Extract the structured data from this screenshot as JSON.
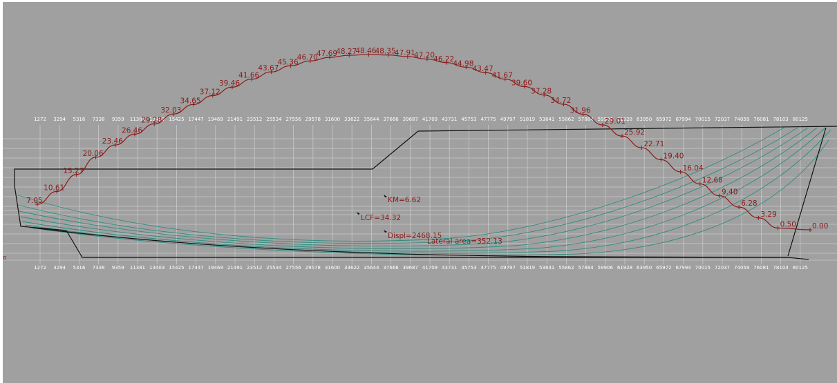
{
  "stations": [
    "1272",
    "3294",
    "5316",
    "7338",
    "9359",
    "11381",
    "13403",
    "15425",
    "17447",
    "19469",
    "21491",
    "23512",
    "25534",
    "27556",
    "29578",
    "31600",
    "33622",
    "35644",
    "37666",
    "39687",
    "41709",
    "43731",
    "45753",
    "47775",
    "49797",
    "51819",
    "53841",
    "55862",
    "57884",
    "59906",
    "61928",
    "63950",
    "65972",
    "67994",
    "70015",
    "72037",
    "74059",
    "76081",
    "78103",
    "80125"
  ],
  "curve_points": [
    {
      "label": "7.05",
      "value": 7.05
    },
    {
      "label": "10.61",
      "value": 10.61
    },
    {
      "label": "15.27",
      "value": 15.27
    },
    {
      "label": "20.06",
      "value": 20.06
    },
    {
      "label": "23.46",
      "value": 23.46
    },
    {
      "label": "26.46",
      "value": 26.46
    },
    {
      "label": "29.28",
      "value": 29.28
    },
    {
      "label": "32.03",
      "value": 32.03
    },
    {
      "label": "34.65",
      "value": 34.65
    },
    {
      "label": "37.12",
      "value": 37.12
    },
    {
      "label": "39.46",
      "value": 39.46
    },
    {
      "label": "41.66",
      "value": 41.66
    },
    {
      "label": "43.67",
      "value": 43.67
    },
    {
      "label": "45.36",
      "value": 45.36
    },
    {
      "label": "46.70",
      "value": 46.7
    },
    {
      "label": "47.69",
      "value": 47.69
    },
    {
      "label": "48.27",
      "value": 48.27
    },
    {
      "label": "48.46",
      "value": 48.46
    },
    {
      "label": "48.35",
      "value": 48.35
    },
    {
      "label": "47.91",
      "value": 47.91
    },
    {
      "label": "47.20",
      "value": 47.2
    },
    {
      "label": "46.22",
      "value": 46.22
    },
    {
      "label": "44.98",
      "value": 44.98
    },
    {
      "label": "43.47",
      "value": 43.47
    },
    {
      "label": "41.67",
      "value": 41.67
    },
    {
      "label": "39.60",
      "value": 39.6
    },
    {
      "label": "37.28",
      "value": 37.28
    },
    {
      "label": "34.72",
      "value": 34.72
    },
    {
      "label": "31.96",
      "value": 31.96
    },
    {
      "label": "29.01",
      "value": 29.01
    },
    {
      "label": "25.92",
      "value": 25.92
    },
    {
      "label": "22.71",
      "value": 22.71
    },
    {
      "label": "19.40",
      "value": 19.4
    },
    {
      "label": "16.04",
      "value": 16.04
    },
    {
      "label": "12.68",
      "value": 12.68
    },
    {
      "label": "9.40",
      "value": 9.4
    },
    {
      "label": "6.28",
      "value": 6.28
    },
    {
      "label": "3.29",
      "value": 3.29
    },
    {
      "label": "0.50",
      "value": 0.5
    },
    {
      "label": "0.00",
      "value": 0.0
    }
  ],
  "markers": {
    "km": "KM=6.62",
    "lcf": "LCF=34.32",
    "displ": "Displ=2468.15",
    "lateral_area": "Lateral area=352.13"
  },
  "colors": {
    "background": "#a0a0a0",
    "grid": "#c9c9c9",
    "curve": "#8b1a1a",
    "hull": "#111111",
    "waterlines": "#2e8b80",
    "tick_text": "#ffffff"
  }
}
